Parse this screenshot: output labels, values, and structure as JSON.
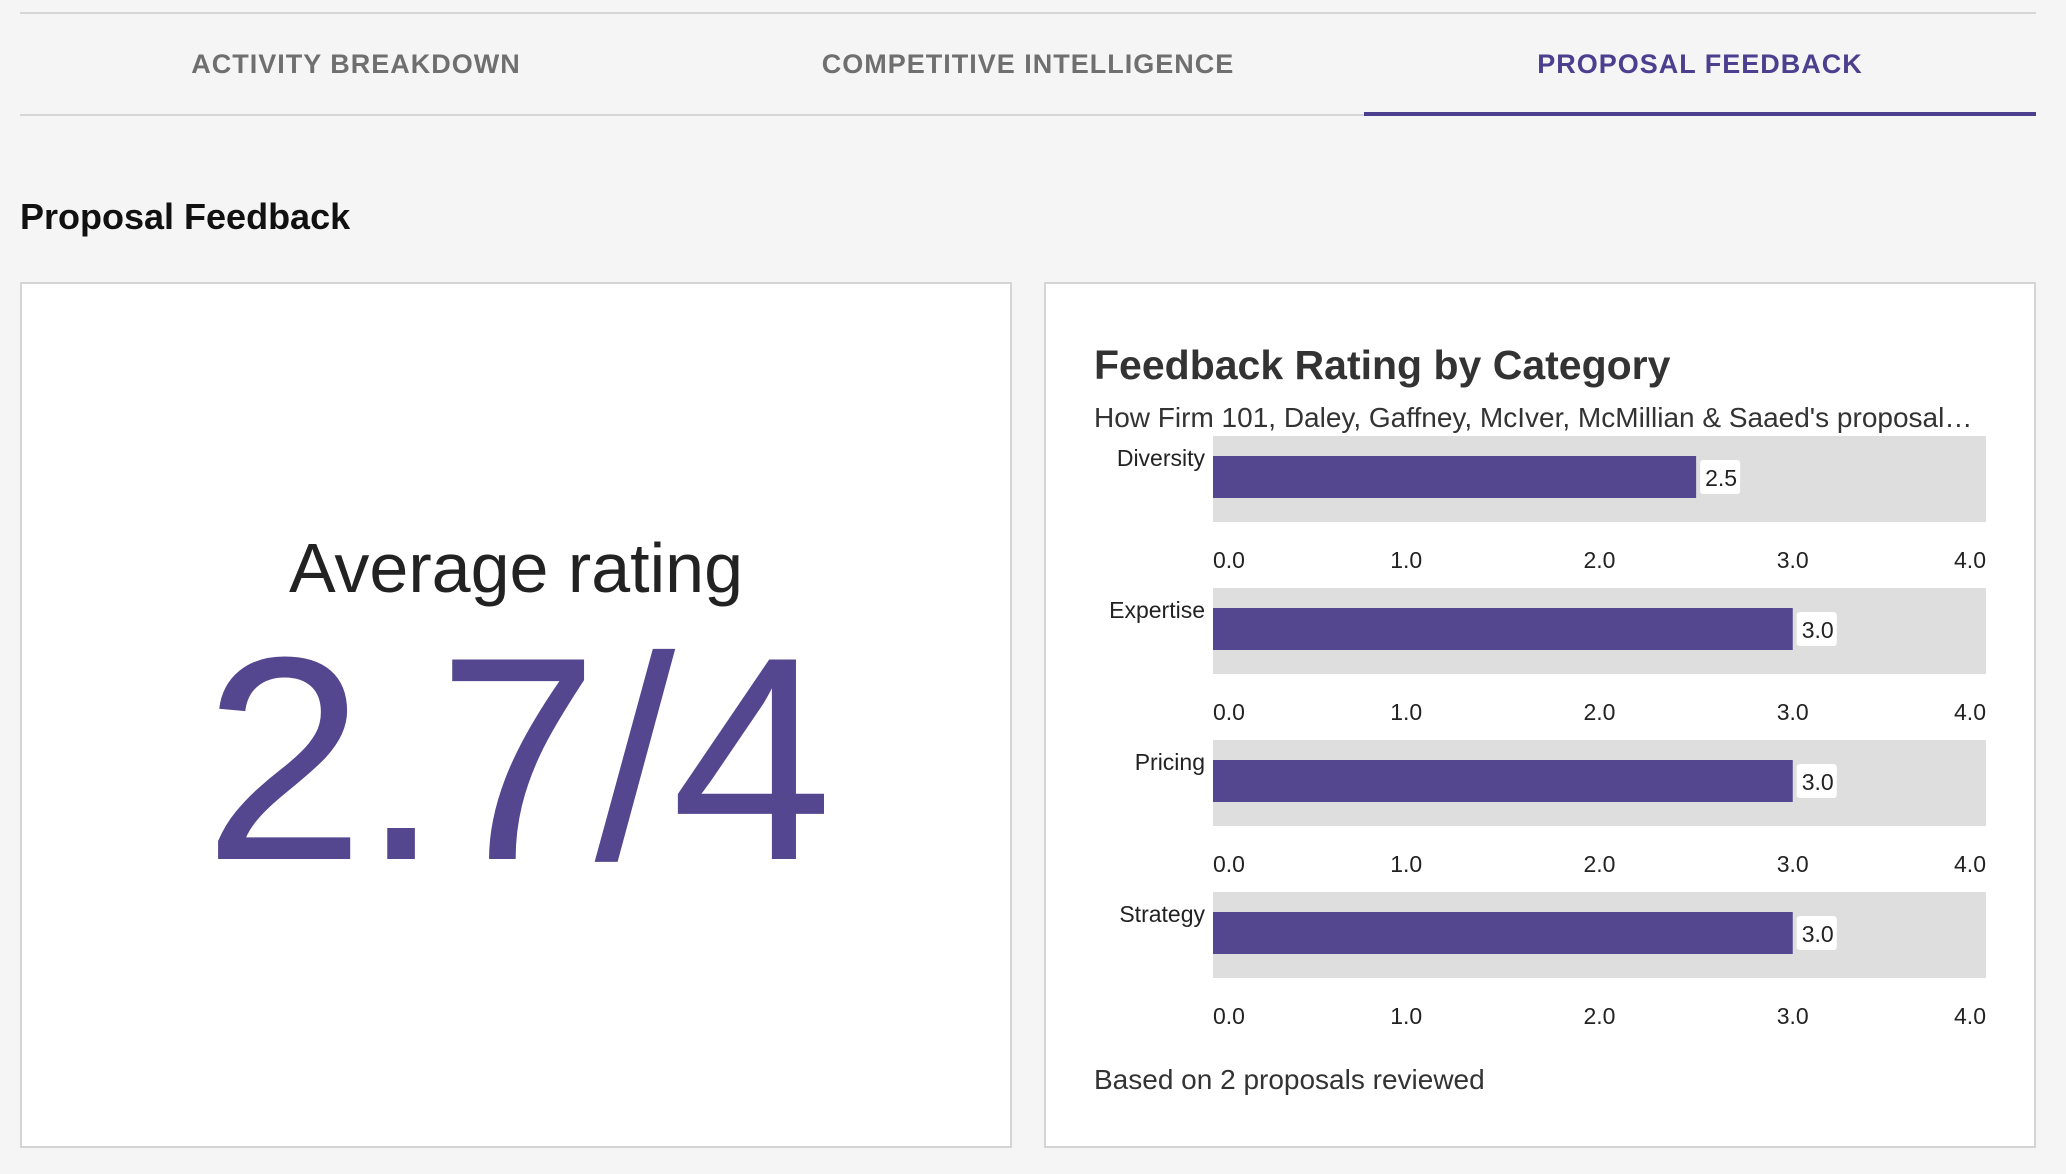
{
  "tabs": [
    {
      "label": "ACTIVITY BREAKDOWN",
      "active": false
    },
    {
      "label": "COMPETITIVE INTELLIGENCE",
      "active": false
    },
    {
      "label": "PROPOSAL FEEDBACK",
      "active": true
    }
  ],
  "section_title": "Proposal Feedback",
  "average": {
    "label": "Average rating",
    "value": "2.7/4"
  },
  "colors": {
    "accent": "#4c3f8f",
    "bar": "#54478f",
    "track": "#dedede"
  },
  "chart_data": {
    "type": "bar",
    "orientation": "horizontal",
    "title": "Feedback Rating by Category",
    "subtitle": "How Firm 101, Daley, Gaffney, McIver, McMillian & Saaed's proposal…",
    "categories": [
      "Diversity",
      "Expertise",
      "Pricing",
      "Strategy"
    ],
    "values": [
      2.5,
      3.0,
      3.0,
      3.0
    ],
    "value_labels": [
      "2.5",
      "3.0",
      "3.0",
      "3.0"
    ],
    "xlim": [
      0,
      4
    ],
    "ticks": [
      "0.0",
      "1.0",
      "2.0",
      "3.0",
      "4.0"
    ],
    "grid": false,
    "footer": "Based on 2 proposals reviewed"
  }
}
